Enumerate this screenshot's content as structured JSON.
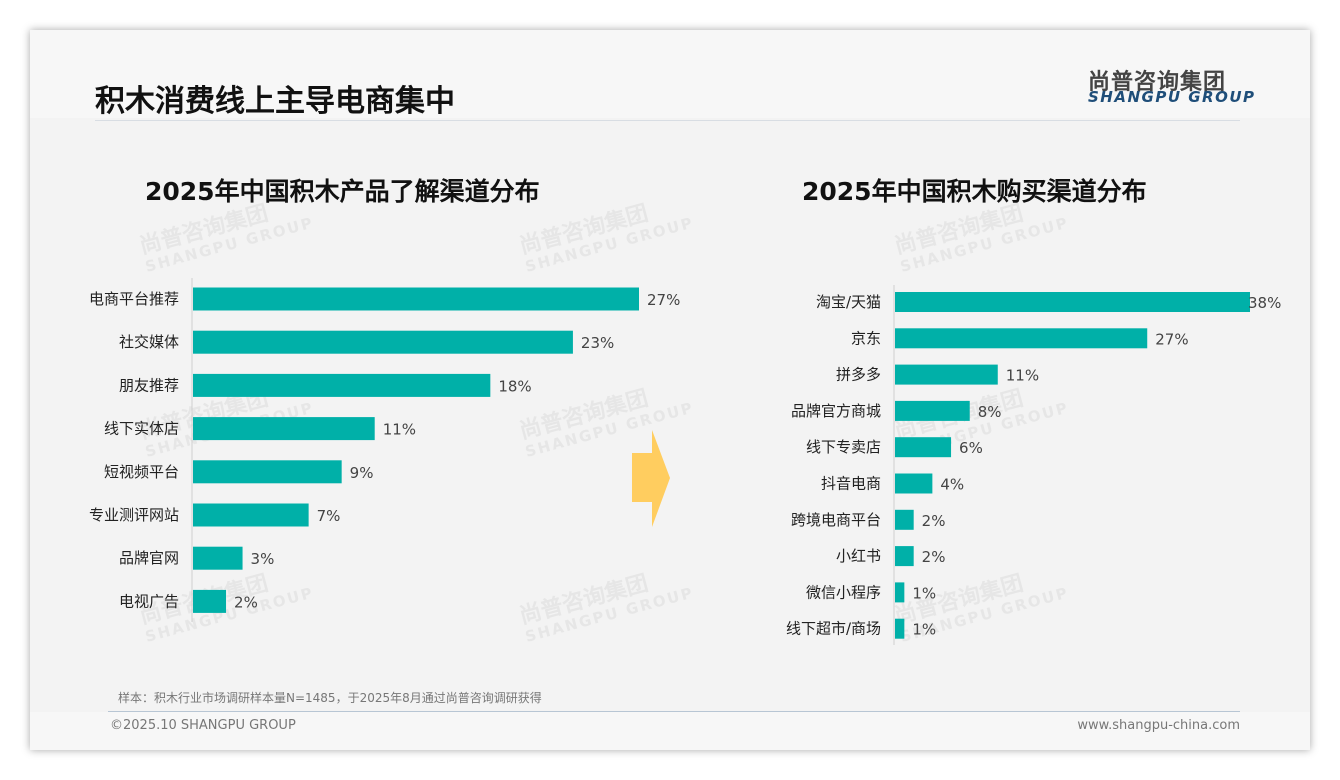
{
  "header": {
    "title": "积木消费线上主导电商集中",
    "logo_cn": "尚普咨询集团",
    "logo_en": "SHANGPU GROUP"
  },
  "watermark": {
    "cn": "尚普咨询集团",
    "en": "SHANGPU GROUP"
  },
  "colors": {
    "bar": "#00b0a8",
    "arrow": "#ffcd5f"
  },
  "chart_data": [
    {
      "type": "bar",
      "orientation": "horizontal",
      "title": "2025年中国积木产品了解渠道分布",
      "categories": [
        "电商平台推荐",
        "社交媒体",
        "朋友推荐",
        "线下实体店",
        "短视频平台",
        "专业测评网站",
        "品牌官网",
        "电视广告"
      ],
      "values": [
        27,
        23,
        18,
        11,
        9,
        7,
        3,
        2
      ],
      "labels": [
        "27%",
        "23%",
        "18%",
        "11%",
        "9%",
        "7%",
        "3%",
        "2%"
      ],
      "unit": "%",
      "xlim": [
        0,
        27
      ]
    },
    {
      "type": "bar",
      "orientation": "horizontal",
      "title": "2025年中国积木购买渠道分布",
      "categories": [
        "淘宝/天猫",
        "京东",
        "拼多多",
        "品牌官方商城",
        "线下专卖店",
        "抖音电商",
        "跨境电商平台",
        "小红书",
        "微信小程序",
        "线下超市/商场"
      ],
      "values": [
        38,
        27,
        11,
        8,
        6,
        4,
        2,
        2,
        1,
        1
      ],
      "labels": [
        "38%",
        "27%",
        "11%",
        "8%",
        "6%",
        "4%",
        "2%",
        "2%",
        "1%",
        "1%"
      ],
      "unit": "%",
      "xlim": [
        0,
        38
      ]
    }
  ],
  "footer": {
    "note": "样本：积木行业市场调研样本量N=1485，于2025年8月通过尚普咨询调研获得",
    "copyright": "©2025.10 SHANGPU GROUP",
    "url": "www.shangpu-china.com"
  }
}
